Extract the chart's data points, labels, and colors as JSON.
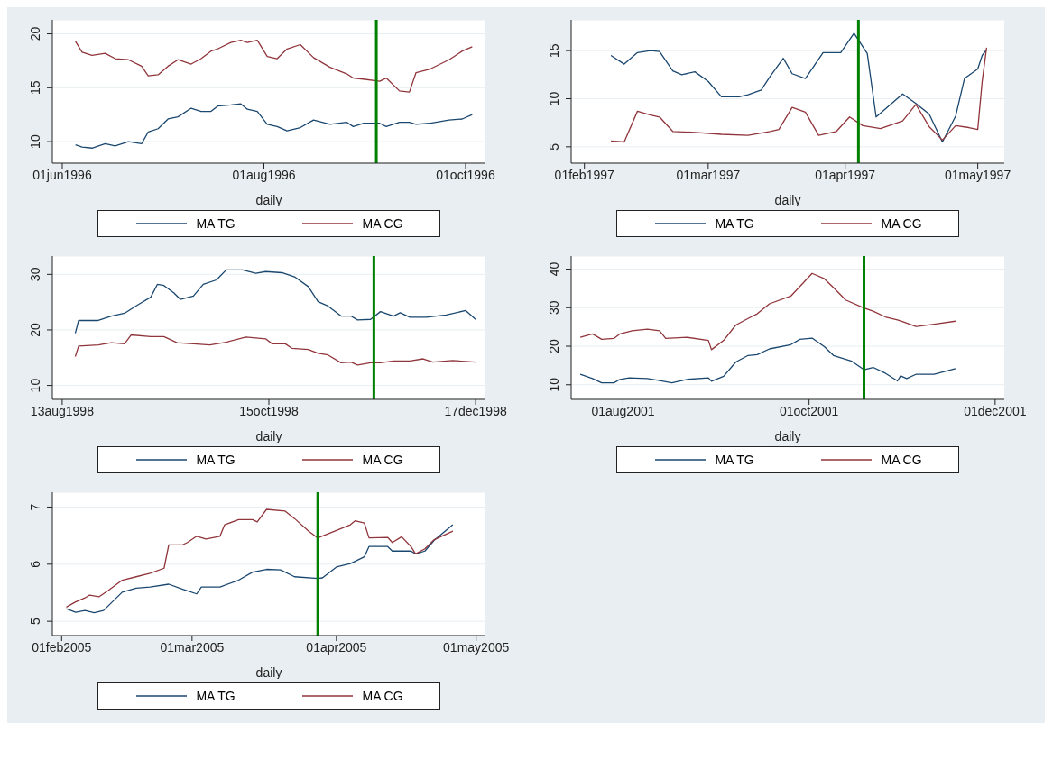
{
  "chart_data": [
    {
      "type": "line",
      "xlabel": "daily",
      "xlim": [
        "1996-05-29",
        "1996-10-07"
      ],
      "xticks": [
        {
          "value": "1996-06-01",
          "label": "01jun1996"
        },
        {
          "value": "1996-08-01",
          "label": "01aug1996"
        },
        {
          "value": "1996-10-01",
          "label": "01oct1996"
        }
      ],
      "ylim": [
        8,
        21.3
      ],
      "yticks": [
        10,
        15,
        20
      ],
      "grid": "y",
      "legend": "bottom",
      "x": [
        "1996-06-05",
        "1996-06-07",
        "1996-06-10",
        "1996-06-14",
        "1996-06-17",
        "1996-06-21",
        "1996-06-25",
        "1996-06-27",
        "1996-06-30",
        "1996-07-03",
        "1996-07-06",
        "1996-07-10",
        "1996-07-13",
        "1996-07-16",
        "1996-07-18",
        "1996-07-22",
        "1996-07-25",
        "1996-07-27",
        "1996-07-30",
        "1996-08-02",
        "1996-08-05",
        "1996-08-08",
        "1996-08-12",
        "1996-08-16",
        "1996-08-21",
        "1996-08-26",
        "1996-08-28",
        "1996-08-31",
        "1996-09-05",
        "1996-09-07",
        "1996-09-11",
        "1996-09-14",
        "1996-09-16",
        "1996-09-20",
        "1996-09-26",
        "1996-09-30",
        "1996-10-03"
      ],
      "series": [
        {
          "name": "MA TG",
          "color": "#1a476f",
          "values": [
            9.7,
            9.5,
            9.4,
            9.8,
            9.6,
            10.0,
            9.8,
            10.9,
            11.2,
            12.1,
            12.3,
            13.1,
            12.8,
            12.8,
            13.3,
            13.4,
            13.5,
            13.0,
            12.8,
            11.6,
            11.4,
            11.0,
            11.3,
            12.0,
            11.6,
            11.8,
            11.4,
            11.7,
            11.7,
            11.4,
            11.8,
            11.8,
            11.6,
            11.7,
            12.0,
            12.1,
            12.5
          ]
        },
        {
          "name": "MA CG",
          "color": "#90353b",
          "values": [
            19.3,
            18.3,
            18.0,
            18.2,
            17.7,
            17.6,
            17.0,
            16.1,
            16.2,
            17.0,
            17.6,
            17.2,
            17.7,
            18.4,
            18.6,
            19.2,
            19.4,
            19.2,
            19.4,
            17.9,
            17.7,
            18.6,
            19.0,
            17.8,
            16.9,
            16.3,
            15.9,
            15.8,
            15.6,
            15.9,
            14.7,
            14.6,
            16.4,
            16.7,
            17.6,
            18.4,
            18.8
          ]
        }
      ],
      "ref_lines": [
        {
          "axis": "x",
          "value": "1996-09-04",
          "color": "#008000"
        }
      ]
    },
    {
      "type": "line",
      "xlabel": "daily",
      "xlim": [
        "1997-01-29",
        "1997-05-07"
      ],
      "xticks": [
        {
          "value": "1997-02-01",
          "label": "01feb1997"
        },
        {
          "value": "1997-03-01",
          "label": "01mar1997"
        },
        {
          "value": "1997-04-01",
          "label": "01apr1997"
        },
        {
          "value": "1997-05-01",
          "label": "01may1997"
        }
      ],
      "ylim": [
        3.3,
        18.2
      ],
      "yticks": [
        5,
        10,
        15
      ],
      "grid": "y",
      "legend": "bottom",
      "series": [
        {
          "name": "MA TG",
          "color": "#1a476f",
          "x": [
            "1997-02-07",
            "1997-02-10",
            "1997-02-13",
            "1997-02-16",
            "1997-02-18",
            "1997-02-21",
            "1997-02-23",
            "1997-02-26",
            "1997-03-01",
            "1997-03-04",
            "1997-03-08",
            "1997-03-10",
            "1997-03-13",
            "1997-03-15",
            "1997-03-18",
            "1997-03-20",
            "1997-03-23",
            "1997-03-27",
            "1997-03-31",
            "1997-04-03",
            "1997-04-06",
            "1997-04-08",
            "1997-04-11",
            "1997-04-14",
            "1997-04-17",
            "1997-04-20",
            "1997-04-23",
            "1997-04-26",
            "1997-04-28",
            "1997-05-01",
            "1997-05-02",
            "1997-05-03"
          ],
          "values": [
            14.5,
            13.6,
            14.8,
            15.0,
            14.9,
            12.9,
            12.5,
            12.8,
            11.8,
            10.2,
            10.2,
            10.4,
            10.9,
            12.3,
            14.2,
            12.6,
            12.1,
            14.8,
            14.8,
            16.8,
            14.7,
            8.1,
            9.3,
            10.5,
            9.5,
            8.4,
            5.5,
            8.2,
            12.1,
            13.1,
            14.5,
            15.1
          ]
        },
        {
          "name": "MA CG",
          "color": "#90353b",
          "x": [
            "1997-02-07",
            "1997-02-10",
            "1997-02-13",
            "1997-02-16",
            "1997-02-18",
            "1997-02-21",
            "1997-02-26",
            "1997-03-04",
            "1997-03-10",
            "1997-03-15",
            "1997-03-17",
            "1997-03-20",
            "1997-03-23",
            "1997-03-26",
            "1997-03-30",
            "1997-04-02",
            "1997-04-05",
            "1997-04-09",
            "1997-04-14",
            "1997-04-17",
            "1997-04-20",
            "1997-04-23",
            "1997-04-26",
            "1997-04-29",
            "1997-05-01",
            "1997-05-02",
            "1997-05-03"
          ],
          "values": [
            5.6,
            5.5,
            8.7,
            8.3,
            8.1,
            6.6,
            6.5,
            6.3,
            6.2,
            6.6,
            6.8,
            9.1,
            8.6,
            6.2,
            6.6,
            8.1,
            7.2,
            6.9,
            7.7,
            9.4,
            7.1,
            5.7,
            7.2,
            7.0,
            6.8,
            11.8,
            15.3
          ]
        }
      ],
      "ref_lines": [
        {
          "axis": "x",
          "value": "1997-04-04",
          "color": "#008000"
        }
      ]
    },
    {
      "type": "line",
      "xlabel": "daily",
      "xlim": [
        "1998-08-10",
        "1998-12-20"
      ],
      "xticks": [
        {
          "value": "1998-08-13",
          "label": "13aug1998"
        },
        {
          "value": "1998-10-15",
          "label": "15oct1998"
        },
        {
          "value": "1998-12-17",
          "label": "17dec1998"
        }
      ],
      "ylim": [
        7.5,
        33.3
      ],
      "yticks": [
        10,
        20,
        30
      ],
      "grid": "y",
      "legend": "bottom",
      "series": [
        {
          "name": "MA TG",
          "color": "#1a476f",
          "x": [
            "1998-08-17",
            "1998-08-18",
            "1998-08-24",
            "1998-08-28",
            "1998-09-01",
            "1998-09-05",
            "1998-09-09",
            "1998-09-11",
            "1998-09-13",
            "1998-09-16",
            "1998-09-18",
            "1998-09-22",
            "1998-09-25",
            "1998-09-29",
            "1998-10-02",
            "1998-10-07",
            "1998-10-11",
            "1998-10-14",
            "1998-10-19",
            "1998-10-23",
            "1998-10-27",
            "1998-10-30",
            "1998-11-02",
            "1998-11-06",
            "1998-11-09",
            "1998-11-11",
            "1998-11-15",
            "1998-11-18",
            "1998-11-22",
            "1998-11-24",
            "1998-11-27",
            "1998-12-02",
            "1998-12-08",
            "1998-12-14",
            "1998-12-17"
          ],
          "values": [
            19.4,
            21.7,
            21.7,
            22.5,
            23.0,
            24.5,
            25.9,
            28.2,
            28.0,
            26.7,
            25.5,
            26.1,
            28.2,
            29.0,
            30.8,
            30.8,
            30.2,
            30.5,
            30.3,
            29.5,
            27.8,
            25.1,
            24.3,
            22.5,
            22.5,
            21.8,
            21.9,
            23.3,
            22.5,
            23.1,
            22.3,
            22.3,
            22.7,
            23.5,
            21.9
          ]
        },
        {
          "name": "MA CG",
          "color": "#90353b",
          "x": [
            "1998-08-17",
            "1998-08-18",
            "1998-08-24",
            "1998-08-28",
            "1998-09-01",
            "1998-09-03",
            "1998-09-09",
            "1998-09-13",
            "1998-09-17",
            "1998-09-22",
            "1998-09-27",
            "1998-10-02",
            "1998-10-08",
            "1998-10-14",
            "1998-10-16",
            "1998-10-20",
            "1998-10-22",
            "1998-10-27",
            "1998-10-30",
            "1998-11-02",
            "1998-11-06",
            "1998-11-09",
            "1998-11-11",
            "1998-11-15",
            "1998-11-18",
            "1998-11-22",
            "1998-11-27",
            "1998-12-01",
            "1998-12-04",
            "1998-12-10",
            "1998-12-17"
          ],
          "values": [
            15.2,
            17.1,
            17.3,
            17.7,
            17.5,
            19.1,
            18.8,
            18.8,
            17.7,
            17.5,
            17.3,
            17.8,
            18.7,
            18.4,
            17.5,
            17.5,
            16.7,
            16.5,
            15.8,
            15.5,
            14.1,
            14.2,
            13.7,
            14.1,
            14.1,
            14.4,
            14.4,
            14.8,
            14.2,
            14.5,
            14.2
          ]
        }
      ],
      "ref_lines": [
        {
          "axis": "x",
          "value": "1998-11-16",
          "color": "#008000"
        }
      ]
    },
    {
      "type": "line",
      "xlabel": "daily",
      "xlim": [
        "2001-07-15",
        "2001-12-04"
      ],
      "xticks": [
        {
          "value": "2001-08-01",
          "label": "01aug2001"
        },
        {
          "value": "2001-10-01",
          "label": "01oct2001"
        },
        {
          "value": "2001-12-01",
          "label": "01dec2001"
        }
      ],
      "ylim": [
        6.2,
        43.4
      ],
      "yticks": [
        10,
        20,
        30,
        40
      ],
      "grid": "y",
      "legend": "bottom",
      "series": [
        {
          "name": "MA TG",
          "color": "#1a476f",
          "x": [
            "2001-07-18",
            "2001-07-22",
            "2001-07-25",
            "2001-07-29",
            "2001-07-31",
            "2001-08-03",
            "2001-08-09",
            "2001-08-13",
            "2001-08-17",
            "2001-08-22",
            "2001-08-29",
            "2001-08-30",
            "2001-09-03",
            "2001-09-07",
            "2001-09-11",
            "2001-09-14",
            "2001-09-18",
            "2001-09-25",
            "2001-09-28",
            "2001-10-02",
            "2001-10-06",
            "2001-10-09",
            "2001-10-15",
            "2001-10-19",
            "2001-10-22",
            "2001-10-26",
            "2001-10-30",
            "2001-10-31",
            "2001-11-02",
            "2001-11-05",
            "2001-11-11",
            "2001-11-18"
          ],
          "values": [
            12.7,
            11.6,
            10.5,
            10.5,
            11.4,
            11.8,
            11.6,
            11.1,
            10.5,
            11.4,
            11.8,
            10.9,
            12.2,
            15.9,
            17.6,
            17.8,
            19.3,
            20.4,
            21.8,
            22.1,
            19.9,
            17.6,
            16.1,
            13.9,
            14.5,
            13.0,
            11.0,
            12.3,
            11.6,
            12.7,
            12.7,
            14.2
          ]
        },
        {
          "name": "MA CG",
          "color": "#90353b",
          "x": [
            "2001-07-18",
            "2001-07-22",
            "2001-07-25",
            "2001-07-29",
            "2001-07-31",
            "2001-08-04",
            "2001-08-09",
            "2001-08-13",
            "2001-08-15",
            "2001-08-22",
            "2001-08-29",
            "2001-08-30",
            "2001-09-03",
            "2001-09-07",
            "2001-09-11",
            "2001-09-14",
            "2001-09-18",
            "2001-09-25",
            "2001-09-28",
            "2001-10-02",
            "2001-10-06",
            "2001-10-09",
            "2001-10-13",
            "2001-10-19",
            "2001-10-22",
            "2001-10-26",
            "2001-10-30",
            "2001-11-01",
            "2001-11-05",
            "2001-11-11",
            "2001-11-18"
          ],
          "values": [
            22.3,
            23.2,
            21.8,
            22.0,
            23.2,
            24.0,
            24.4,
            24.0,
            22.0,
            22.3,
            21.5,
            19.1,
            21.5,
            25.5,
            27.2,
            28.4,
            31.0,
            33.0,
            35.5,
            38.9,
            37.5,
            35.2,
            32.0,
            29.9,
            29.1,
            27.6,
            26.8,
            26.3,
            25.1,
            25.7,
            26.5
          ]
        }
      ],
      "ref_lines": [
        {
          "axis": "x",
          "value": "2001-10-19",
          "color": "#008000"
        }
      ]
    },
    {
      "type": "line",
      "xlabel": "daily",
      "xlim": [
        "2005-01-30",
        "2005-05-03"
      ],
      "xticks": [
        {
          "value": "2005-02-01",
          "label": "01feb2005"
        },
        {
          "value": "2005-03-01",
          "label": "01mar2005"
        },
        {
          "value": "2005-04-01",
          "label": "01apr2005"
        },
        {
          "value": "2005-05-01",
          "label": "01may2005"
        }
      ],
      "ylim": [
        4.75,
        7.26
      ],
      "yticks": [
        5,
        6,
        7
      ],
      "grid": "y",
      "legend": "bottom",
      "series": [
        {
          "name": "MA TG",
          "color": "#1a476f",
          "x": [
            "2005-02-02",
            "2005-02-04",
            "2005-02-06",
            "2005-02-08",
            "2005-02-10",
            "2005-02-14",
            "2005-02-17",
            "2005-02-20",
            "2005-02-24",
            "2005-02-27",
            "2005-03-02",
            "2005-03-03",
            "2005-03-07",
            "2005-03-11",
            "2005-03-14",
            "2005-03-17",
            "2005-03-20",
            "2005-03-23",
            "2005-03-28",
            "2005-03-29",
            "2005-04-01",
            "2005-04-04",
            "2005-04-07",
            "2005-04-08",
            "2005-04-12",
            "2005-04-13",
            "2005-04-17",
            "2005-04-18",
            "2005-04-20",
            "2005-04-22",
            "2005-04-26"
          ],
          "values": [
            5.22,
            5.16,
            5.19,
            5.15,
            5.19,
            5.51,
            5.58,
            5.6,
            5.65,
            5.56,
            5.48,
            5.6,
            5.6,
            5.72,
            5.86,
            5.91,
            5.9,
            5.78,
            5.75,
            5.76,
            5.95,
            6.01,
            6.13,
            6.31,
            6.31,
            6.23,
            6.23,
            6.18,
            6.23,
            6.42,
            6.69
          ]
        },
        {
          "name": "MA CG",
          "color": "#90353b",
          "x": [
            "2005-02-02",
            "2005-02-04",
            "2005-02-06",
            "2005-02-07",
            "2005-02-09",
            "2005-02-11",
            "2005-02-14",
            "2005-02-17",
            "2005-02-20",
            "2005-02-23",
            "2005-02-24",
            "2005-02-27",
            "2005-02-28",
            "2005-03-02",
            "2005-03-04",
            "2005-03-07",
            "2005-03-08",
            "2005-03-11",
            "2005-03-14",
            "2005-03-15",
            "2005-03-17",
            "2005-03-21",
            "2005-03-23",
            "2005-03-26",
            "2005-03-28",
            "2005-04-01",
            "2005-04-04",
            "2005-04-05",
            "2005-04-07",
            "2005-04-08",
            "2005-04-12",
            "2005-04-13",
            "2005-04-15",
            "2005-04-17",
            "2005-04-18",
            "2005-04-20",
            "2005-04-22",
            "2005-04-26"
          ],
          "values": [
            5.25,
            5.34,
            5.41,
            5.46,
            5.43,
            5.54,
            5.72,
            5.78,
            5.84,
            5.93,
            6.34,
            6.34,
            6.38,
            6.49,
            6.44,
            6.49,
            6.69,
            6.78,
            6.78,
            6.74,
            6.96,
            6.93,
            6.8,
            6.58,
            6.46,
            6.59,
            6.69,
            6.76,
            6.72,
            6.46,
            6.47,
            6.38,
            6.48,
            6.31,
            6.18,
            6.27,
            6.43,
            6.58
          ]
        }
      ],
      "ref_lines": [
        {
          "axis": "x",
          "value": "2005-03-28",
          "color": "#008000"
        }
      ]
    }
  ]
}
